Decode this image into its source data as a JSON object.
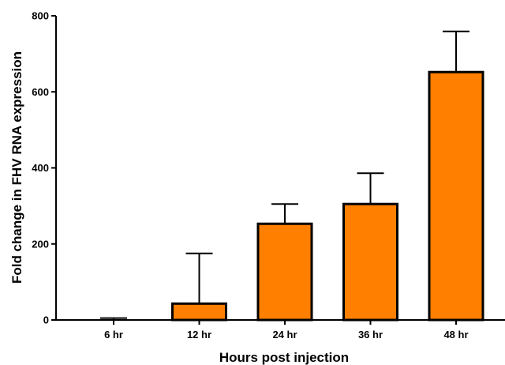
{
  "chart_data": {
    "type": "bar",
    "categories": [
      "6 hr",
      "12 hr",
      "24 hr",
      "36 hr",
      "48 hr"
    ],
    "values": [
      1,
      43,
      253,
      305,
      652
    ],
    "error_upper": [
      5,
      175,
      305,
      386,
      759
    ],
    "xlabel": "Hours post injection",
    "ylabel": "Fold change in FHV RNA expression",
    "ylim": [
      0,
      800
    ],
    "yticks": [
      0,
      200,
      400,
      600,
      800
    ],
    "grid": false,
    "legend": "none",
    "colors": {
      "bar_fill": "#FF7F00",
      "bar_stroke": "#000000",
      "axis": "#000000"
    }
  }
}
